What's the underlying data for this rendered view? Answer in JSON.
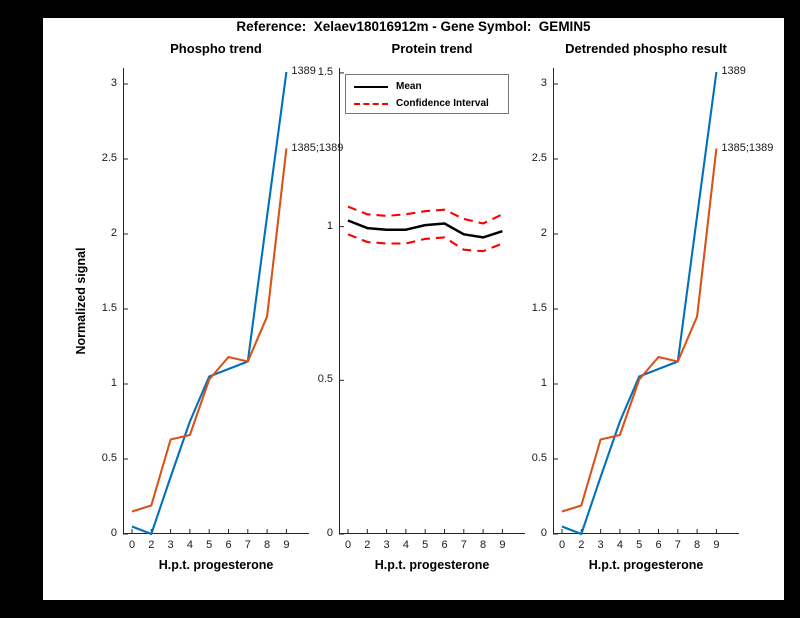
{
  "figure": {
    "title": "Reference:  Xelaev18016912m - Gene Symbol:  GEMIN5",
    "background_color": "#000000",
    "canvas_color": "#ffffff",
    "axis_color": "#262626"
  },
  "chart_data": [
    {
      "type": "line",
      "title": "Phospho trend",
      "xlabel": "H.p.t. progesterone",
      "ylabel": "Normalized signal",
      "categories": [
        "0",
        "2",
        "3",
        "4",
        "5",
        "6",
        "7",
        "8",
        "9"
      ],
      "ylim": [
        0,
        3.1067
      ],
      "yticks": [
        0,
        0.5,
        1,
        1.5,
        2,
        2.5,
        3
      ],
      "grid": false,
      "series": [
        {
          "name": "1389",
          "color": "#0072BD",
          "dash": false,
          "end_label": "1389",
          "values": [
            0.05,
            0.0,
            0.38,
            0.75,
            1.05,
            1.1,
            1.15,
            2.12,
            3.08
          ]
        },
        {
          "name": "1385;1389",
          "color": "#D95319",
          "dash": false,
          "end_label": "1385;1389",
          "values": [
            0.15,
            0.19,
            0.63,
            0.66,
            1.03,
            1.18,
            1.15,
            1.45,
            2.57
          ]
        }
      ]
    },
    {
      "type": "line",
      "title": "Protein trend",
      "xlabel": "H.p.t. progesterone",
      "ylabel": "",
      "categories": [
        "0",
        "2",
        "3",
        "4",
        "5",
        "6",
        "7",
        "8",
        "9"
      ],
      "ylim": [
        0,
        1.516
      ],
      "yticks": [
        0,
        0.5,
        1,
        1.5
      ],
      "grid": false,
      "legend": [
        {
          "label": "Mean",
          "color": "#000000",
          "dash": false
        },
        {
          "label": "Confidence Interval",
          "color": "#FF0000",
          "dash": true
        }
      ],
      "series": [
        {
          "name": "Mean",
          "color": "#000000",
          "dash": false,
          "width": 2.5,
          "values": [
            1.02,
            0.995,
            0.99,
            0.99,
            1.005,
            1.01,
            0.975,
            0.965,
            0.985
          ]
        },
        {
          "name": "CI upper",
          "color": "#FF0000",
          "dash": true,
          "values": [
            1.065,
            1.04,
            1.035,
            1.04,
            1.05,
            1.055,
            1.025,
            1.01,
            1.04
          ]
        },
        {
          "name": "CI lower",
          "color": "#FF0000",
          "dash": true,
          "values": [
            0.975,
            0.95,
            0.945,
            0.945,
            0.96,
            0.965,
            0.925,
            0.92,
            0.945
          ]
        }
      ]
    },
    {
      "type": "line",
      "title": "Detrended phospho result",
      "xlabel": "H.p.t. progesterone",
      "ylabel": "",
      "categories": [
        "0",
        "2",
        "3",
        "4",
        "5",
        "6",
        "7",
        "8",
        "9"
      ],
      "ylim": [
        0,
        3.1067
      ],
      "yticks": [
        0,
        0.5,
        1,
        1.5,
        2,
        2.5,
        3
      ],
      "grid": false,
      "series": [
        {
          "name": "1389",
          "color": "#0072BD",
          "dash": false,
          "end_label": "1389",
          "values": [
            0.05,
            0.0,
            0.38,
            0.75,
            1.05,
            1.1,
            1.15,
            2.12,
            3.08
          ]
        },
        {
          "name": "1385;1389",
          "color": "#D95319",
          "dash": false,
          "end_label": "1385;1389",
          "values": [
            0.15,
            0.19,
            0.63,
            0.66,
            1.03,
            1.18,
            1.15,
            1.45,
            2.57
          ]
        }
      ]
    }
  ]
}
